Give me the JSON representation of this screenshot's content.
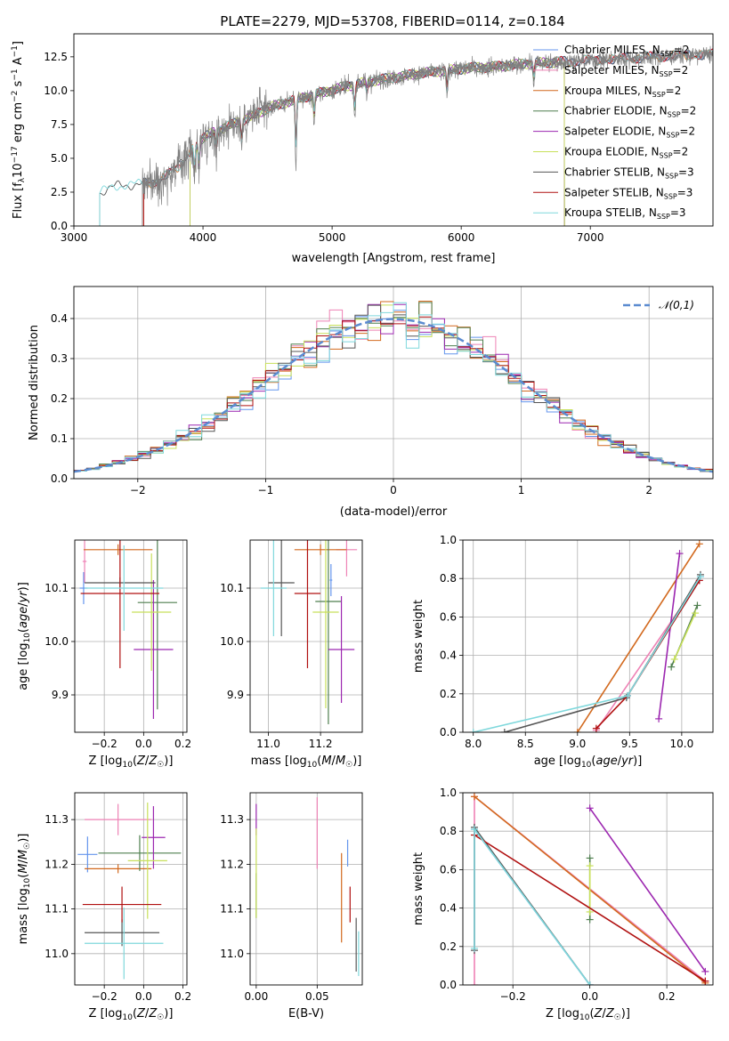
{
  "figure": {
    "title": "PLATE=2279, MJD=53708, FIBERID=0114, z=0.184"
  },
  "palette": {
    "Chabrier MILES": "#6495ed",
    "Salpeter MILES": "#ee82b5",
    "Kroupa MILES": "#d2691e",
    "Chabrier ELODIE": "#4f7f4f",
    "Salpeter ELODIE": "#9c27b0",
    "Kroupa ELODIE": "#c8e05a",
    "Chabrier STELIB": "#555555",
    "Salpeter STELIB": "#b01010",
    "Kroupa STELIB": "#7fd8dc"
  },
  "chart_data": [
    {
      "id": "spectrum",
      "type": "line",
      "xlabel": "wavelength [Angstrom, rest frame]",
      "ylabel": "Flux [f_λ 10^-17 erg cm^-2 s^-1 A^-1]",
      "xlim": [
        3000,
        7950
      ],
      "ylim": [
        0,
        14.2
      ],
      "xticks": [
        3000,
        4000,
        5000,
        6000,
        7000
      ],
      "yticks": [
        0.0,
        2.5,
        5.0,
        7.5,
        10.0,
        12.5
      ],
      "grid": false,
      "legend_position": "right",
      "legend": [
        {
          "label": "Chabrier MILES, N",
          "sub": "SSP",
          "suffix": "=2",
          "color": "#6495ed"
        },
        {
          "label": "Salpeter MILES, N",
          "sub": "SSP",
          "suffix": "=2",
          "color": "#ee82b5"
        },
        {
          "label": "Kroupa MILES, N",
          "sub": "SSP",
          "suffix": "=2",
          "color": "#d2691e"
        },
        {
          "label": "Chabrier ELODIE, N",
          "sub": "SSP",
          "suffix": "=2",
          "color": "#4f7f4f"
        },
        {
          "label": "Salpeter ELODIE, N",
          "sub": "SSP",
          "suffix": "=2",
          "color": "#9c27b0"
        },
        {
          "label": "Kroupa ELODIE, N",
          "sub": "SSP",
          "suffix": "=2",
          "color": "#c8e05a"
        },
        {
          "label": "Chabrier STELIB, N",
          "sub": "SSP",
          "suffix": "=3",
          "color": "#555555"
        },
        {
          "label": "Salpeter STELIB, N",
          "sub": "SSP",
          "suffix": "=3",
          "color": "#b01010"
        },
        {
          "label": "Kroupa STELIB, N",
          "sub": "SSP",
          "suffix": "=3",
          "color": "#7fd8dc"
        }
      ],
      "data_color": "#808080",
      "data_xrange": [
        3530,
        7950
      ],
      "model_start": [
        {
          "name": "Chabrier MILES",
          "x0": 3540
        },
        {
          "name": "Salpeter MILES",
          "x0": 3540
        },
        {
          "name": "Kroupa MILES",
          "x0": 3540
        },
        {
          "name": "Chabrier ELODIE",
          "x0": 3900
        },
        {
          "name": "Salpeter ELODIE",
          "x0": 3900
        },
        {
          "name": "Kroupa ELODIE",
          "x0": 3900
        },
        {
          "name": "Chabrier STELIB",
          "x0": 3200
        },
        {
          "name": "Salpeter STELIB",
          "x0": 3540
        },
        {
          "name": "Kroupa STELIB",
          "x0": 3200
        }
      ],
      "model_end": [
        {
          "name": "Chabrier MILES",
          "x1": 7950
        },
        {
          "name": "Salpeter MILES",
          "x1": 7950
        },
        {
          "name": "Kroupa MILES",
          "x1": 7950
        },
        {
          "name": "Chabrier ELODIE",
          "x1": 6800
        },
        {
          "name": "Salpeter ELODIE",
          "x1": 6800
        },
        {
          "name": "Kroupa ELODIE",
          "x1": 6800
        },
        {
          "name": "Chabrier STELIB",
          "x1": 7950
        },
        {
          "name": "Salpeter STELIB",
          "x1": 7950
        },
        {
          "name": "Kroupa STELIB",
          "x1": 7950
        }
      ],
      "continuum": {
        "x": [
          3200,
          3350,
          3500,
          3600,
          3700,
          3800,
          3900,
          4000,
          4100,
          4200,
          4300,
          4400,
          4500,
          4700,
          4900,
          5100,
          5300,
          5500,
          5700,
          5900,
          6100,
          6300,
          6500,
          6700,
          6900,
          7100,
          7300,
          7500,
          7700,
          7950
        ],
        "y": [
          2.5,
          3.0,
          3.1,
          3.2,
          3.6,
          4.3,
          5.5,
          6.5,
          7.0,
          7.4,
          7.8,
          8.2,
          8.7,
          9.3,
          9.8,
          10.3,
          10.7,
          11.0,
          11.3,
          11.5,
          11.7,
          11.8,
          12.0,
          12.1,
          12.2,
          12.3,
          12.4,
          12.5,
          12.6,
          12.7
        ]
      }
    },
    {
      "id": "residuals",
      "type": "histogram",
      "xlabel": "(data-model)/error",
      "ylabel": "Normed distribution",
      "xlim": [
        -2.5,
        2.5
      ],
      "ylim": [
        0,
        0.48
      ],
      "xticks": [
        -2,
        -1,
        0,
        1,
        2
      ],
      "yticks": [
        0.0,
        0.1,
        0.2,
        0.3,
        0.4
      ],
      "grid": true,
      "legend_position": "top-right",
      "legend": [
        {
          "label": "𝒩(0,1)",
          "color": "#5b8bd0"
        }
      ],
      "bin_width": 0.1
    },
    {
      "id": "age-vs-Z",
      "type": "errorbar",
      "xlabel": "Z [log10(Z/Z☉)]",
      "ylabel": "age [log10(age/yr)]",
      "xlim": [
        -0.35,
        0.22
      ],
      "ylim": [
        9.83,
        10.19
      ],
      "xticks": [
        -0.2,
        0.0,
        0.2
      ],
      "yticks": [
        9.9,
        10.0,
        10.1
      ],
      "grid": true,
      "series": [
        {
          "name": "Chabrier MILES",
          "x": -0.305,
          "xerr": 0.02,
          "y": 10.1,
          "yerr": 0.03
        },
        {
          "name": "Salpeter MILES",
          "x": -0.3,
          "xerr": 0.01,
          "y": 10.15,
          "yerr": 0.04
        },
        {
          "name": "Kroupa MILES",
          "x": -0.13,
          "xerr": 0.175,
          "y": 10.172,
          "yerr": 0.01
        },
        {
          "name": "Chabrier ELODIE",
          "x": 0.07,
          "xerr": 0.1,
          "y": 10.073,
          "yerr": 0.2
        },
        {
          "name": "Salpeter ELODIE",
          "x": 0.05,
          "xerr": 0.1,
          "y": 9.985,
          "yerr": 0.13
        },
        {
          "name": "Kroupa ELODIE",
          "x": 0.04,
          "xerr": 0.1,
          "y": 10.055,
          "yerr": 0.11
        },
        {
          "name": "Chabrier STELIB",
          "x": -0.12,
          "xerr": 0.18,
          "y": 10.11,
          "yerr": 0.01
        },
        {
          "name": "Salpeter STELIB",
          "x": -0.12,
          "xerr": 0.2,
          "y": 10.09,
          "yerr": 0.14
        },
        {
          "name": "Kroupa STELIB",
          "x": -0.1,
          "xerr": 0.2,
          "y": 10.1,
          "yerr": 0.08
        }
      ]
    },
    {
      "id": "age-vs-mass",
      "type": "errorbar",
      "xlabel": "mass [log10(M/M☉)]",
      "xlim": [
        10.93,
        11.36
      ],
      "ylim": [
        9.83,
        10.19
      ],
      "xticks": [
        11.0,
        11.2
      ],
      "yticks": [
        9.9,
        10.0,
        10.1
      ],
      "grid": true,
      "series": [
        {
          "name": "Chabrier MILES",
          "x": 11.24,
          "xerr": 0.005,
          "y": 10.115,
          "yerr": 0.03
        },
        {
          "name": "Salpeter MILES",
          "x": 11.3,
          "xerr": 0.04,
          "y": 10.172,
          "yerr": 0.05
        },
        {
          "name": "Kroupa MILES",
          "x": 11.2,
          "xerr": 0.1,
          "y": 10.172,
          "yerr": 0.01
        },
        {
          "name": "Chabrier ELODIE",
          "x": 11.23,
          "xerr": 0.05,
          "y": 10.075,
          "yerr": 0.23
        },
        {
          "name": "Salpeter ELODIE",
          "x": 11.28,
          "xerr": 0.05,
          "y": 9.985,
          "yerr": 0.1
        },
        {
          "name": "Kroupa ELODIE",
          "x": 11.22,
          "xerr": 0.05,
          "y": 10.055,
          "yerr": 0.18
        },
        {
          "name": "Chabrier STELIB",
          "x": 11.05,
          "xerr": 0.05,
          "y": 10.11,
          "yerr": 0.1
        },
        {
          "name": "Salpeter STELIB",
          "x": 11.15,
          "xerr": 0.05,
          "y": 10.09,
          "yerr": 0.14
        },
        {
          "name": "Kroupa STELIB",
          "x": 11.02,
          "xerr": 0.05,
          "y": 10.1,
          "yerr": 0.09
        }
      ]
    },
    {
      "id": "weight-vs-age",
      "type": "line",
      "xlabel": "age [log10(age/yr)]",
      "ylabel": "mass weight",
      "xlim": [
        7.9,
        10.3
      ],
      "ylim": [
        0.0,
        1.0
      ],
      "xticks": [
        8.0,
        8.5,
        9.0,
        9.5,
        10.0
      ],
      "yticks": [
        0.0,
        0.2,
        0.4,
        0.6,
        0.8,
        1.0
      ],
      "grid": true,
      "series": [
        {
          "name": "Chabrier MILES",
          "x": [
            9.48,
            10.18
          ],
          "y": [
            0.19,
            0.81
          ]
        },
        {
          "name": "Salpeter MILES",
          "x": [
            9.18,
            10.17
          ],
          "y": [
            0.01,
            0.79
          ]
        },
        {
          "name": "Kroupa MILES",
          "x": [
            9.0,
            10.17
          ],
          "y": [
            0.0,
            0.98
          ]
        },
        {
          "name": "Chabrier ELODIE",
          "x": [
            9.9,
            10.15
          ],
          "y": [
            0.34,
            0.66
          ]
        },
        {
          "name": "Salpeter ELODIE",
          "x": [
            9.78,
            9.98
          ],
          "y": [
            0.07,
            0.93
          ]
        },
        {
          "name": "Kroupa ELODIE",
          "x": [
            9.93,
            10.13
          ],
          "y": [
            0.38,
            0.62
          ]
        },
        {
          "name": "Chabrier STELIB",
          "x": [
            8.3,
            9.47,
            10.18
          ],
          "y": [
            0.0,
            0.18,
            0.82
          ]
        },
        {
          "name": "Salpeter STELIB",
          "x": [
            9.18,
            9.48,
            10.17
          ],
          "y": [
            0.02,
            0.19,
            0.79
          ]
        },
        {
          "name": "Kroupa STELIB",
          "x": [
            8.0,
            9.48,
            10.18
          ],
          "y": [
            0.0,
            0.19,
            0.81
          ]
        }
      ]
    },
    {
      "id": "mass-vs-Z",
      "type": "errorbar",
      "xlabel": "Z [log10(Z/Z☉)]",
      "ylabel": "mass [log10(M/M☉)]",
      "xlim": [
        -0.35,
        0.22
      ],
      "ylim": [
        10.93,
        11.36
      ],
      "xticks": [
        -0.2,
        0.0,
        0.2
      ],
      "yticks": [
        11.0,
        11.1,
        11.2,
        11.3
      ],
      "grid": true,
      "series": [
        {
          "name": "Chabrier MILES",
          "x": -0.285,
          "xerr": 0.05,
          "y": 11.222,
          "yerr": 0.04
        },
        {
          "name": "Salpeter MILES",
          "x": -0.13,
          "xerr": 0.17,
          "y": 11.3,
          "yerr": 0.035
        },
        {
          "name": "Kroupa MILES",
          "x": -0.13,
          "xerr": 0.17,
          "y": 11.19,
          "yerr": 0.01
        },
        {
          "name": "Chabrier ELODIE",
          "x": -0.02,
          "xerr": 0.21,
          "y": 11.225,
          "yerr": 0.04
        },
        {
          "name": "Salpeter ELODIE",
          "x": 0.05,
          "xerr": 0.06,
          "y": 11.26,
          "yerr": 0.07
        },
        {
          "name": "Kroupa ELODIE",
          "x": 0.02,
          "xerr": 0.1,
          "y": 11.208,
          "yerr": 0.13
        },
        {
          "name": "Chabrier STELIB",
          "x": -0.11,
          "xerr": 0.19,
          "y": 11.047,
          "yerr": 0.03
        },
        {
          "name": "Salpeter STELIB",
          "x": -0.11,
          "xerr": 0.2,
          "y": 11.11,
          "yerr": 0.04
        },
        {
          "name": "Kroupa STELIB",
          "x": -0.1,
          "xerr": 0.2,
          "y": 11.023,
          "yerr": 0.08
        }
      ]
    },
    {
      "id": "mass-vs-ebv",
      "type": "errorbar",
      "xlabel": "E(B-V)",
      "xlim": [
        -0.005,
        0.087
      ],
      "ylim": [
        10.93,
        11.36
      ],
      "xticks": [
        0.0,
        0.05
      ],
      "yticks": [
        11.0,
        11.1,
        11.2,
        11.3
      ],
      "grid": true,
      "series": [
        {
          "name": "Chabrier MILES",
          "x": 0.075,
          "y": 11.225,
          "yerr": 0.03
        },
        {
          "name": "Salpeter MILES",
          "x": 0.05,
          "y": 11.27,
          "yerr": 0.08
        },
        {
          "name": "Kroupa MILES",
          "x": 0.07,
          "y": 11.125,
          "yerr": 0.1
        },
        {
          "name": "Chabrier ELODIE",
          "x": 0.0,
          "y": 11.13,
          "yerr": 0.05
        },
        {
          "name": "Salpeter ELODIE",
          "x": 0.0,
          "y": 11.3,
          "yerr": 0.035
        },
        {
          "name": "Kroupa ELODIE",
          "x": 0.0,
          "y": 11.18,
          "yerr": 0.1
        },
        {
          "name": "Chabrier STELIB",
          "x": 0.082,
          "y": 11.02,
          "yerr": 0.06
        },
        {
          "name": "Salpeter STELIB",
          "x": 0.077,
          "y": 11.11,
          "yerr": 0.04
        },
        {
          "name": "Kroupa STELIB",
          "x": 0.084,
          "y": 11.0,
          "yerr": 0.05
        }
      ]
    },
    {
      "id": "weight-vs-Z",
      "type": "line",
      "xlabel": "Z [log10(Z/Z☉)]",
      "ylabel": "mass weight",
      "xlim": [
        -0.33,
        0.32
      ],
      "ylim": [
        0.0,
        1.0
      ],
      "xticks": [
        -0.2,
        0.0,
        0.2
      ],
      "yticks": [
        0.0,
        0.2,
        0.4,
        0.6,
        0.8,
        1.0
      ],
      "grid": true,
      "series": [
        {
          "name": "Chabrier MILES",
          "x": [
            -0.3,
            0.0
          ],
          "y": [
            0.81,
            0.0
          ]
        },
        {
          "name": "Salpeter MILES",
          "x": [
            -0.3,
            -0.3,
            0.3
          ],
          "y": [
            0.0,
            0.98,
            0.02
          ]
        },
        {
          "name": "Kroupa MILES",
          "x": [
            -0.3,
            0.3
          ],
          "y": [
            0.98,
            0.01
          ]
        },
        {
          "name": "Chabrier ELODIE",
          "x": [
            0.0,
            0.0
          ],
          "y": [
            0.34,
            0.66
          ]
        },
        {
          "name": "Salpeter ELODIE",
          "x": [
            0.0,
            0.3
          ],
          "y": [
            0.92,
            0.07
          ]
        },
        {
          "name": "Kroupa ELODIE",
          "x": [
            0.0,
            0.0
          ],
          "y": [
            0.38,
            0.62
          ]
        },
        {
          "name": "Chabrier STELIB",
          "x": [
            -0.3,
            -0.3,
            0.0
          ],
          "y": [
            0.18,
            0.82,
            0.0
          ]
        },
        {
          "name": "Salpeter STELIB",
          "x": [
            -0.3,
            0.3
          ],
          "y": [
            0.78,
            0.02
          ]
        },
        {
          "name": "Kroupa STELIB",
          "x": [
            -0.3,
            -0.3,
            0.0
          ],
          "y": [
            0.19,
            0.81,
            0.0
          ]
        }
      ]
    }
  ]
}
